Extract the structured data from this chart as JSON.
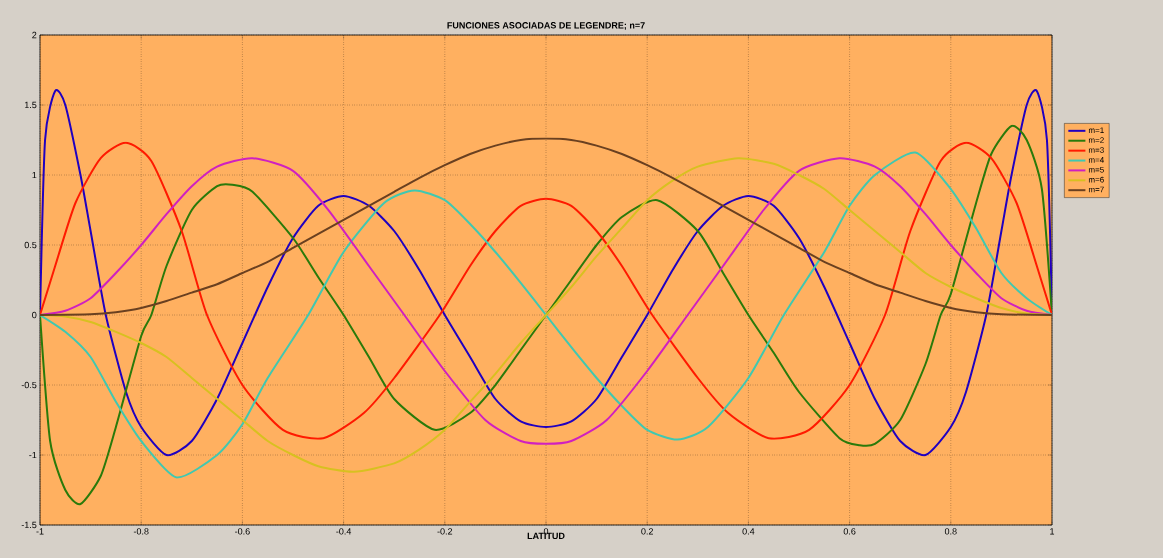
{
  "chart_data": {
    "type": "line",
    "title": "FUNCIONES ASOCIADAS DE LEGENDRE; n=7",
    "xlabel": "LATITUD",
    "xlim": [
      -1,
      1
    ],
    "ylim": [
      -1.5,
      2
    ],
    "xticks": [
      -1,
      -0.8,
      -0.6,
      -0.4,
      -0.2,
      0,
      0.2,
      0.4,
      0.6,
      0.8,
      1
    ],
    "yticks": [
      -1.5,
      -1,
      -0.5,
      0,
      0.5,
      1,
      1.5,
      2
    ],
    "grid": true,
    "legend": "right",
    "line_style": "solid",
    "series": [
      {
        "name": "m=1",
        "color": "#2000c0",
        "x": [
          -1,
          -0.99,
          -0.97,
          -0.95,
          -0.92,
          -0.9,
          -0.87,
          -0.83,
          -0.8,
          -0.75,
          -0.7,
          -0.65,
          -0.6,
          -0.55,
          -0.5,
          -0.45,
          -0.4,
          -0.35,
          -0.3,
          -0.25,
          -0.2,
          -0.15,
          -0.1,
          -0.05,
          0,
          0.05,
          0.1,
          0.15,
          0.2,
          0.25,
          0.3,
          0.35,
          0.4,
          0.45,
          0.5,
          0.55,
          0.6,
          0.65,
          0.7,
          0.75,
          0.8,
          0.83,
          0.87,
          0.9,
          0.92,
          0.95,
          0.97,
          0.99,
          1
        ],
        "values": [
          0,
          1.25,
          1.6,
          1.5,
          1.0,
          0.6,
          0,
          -0.55,
          -0.8,
          -1.0,
          -0.9,
          -0.6,
          -0.2,
          0.2,
          0.55,
          0.78,
          0.85,
          0.78,
          0.6,
          0.32,
          0,
          -0.3,
          -0.6,
          -0.76,
          -0.8,
          -0.76,
          -0.6,
          -0.3,
          0,
          0.32,
          0.6,
          0.78,
          0.85,
          0.78,
          0.55,
          0.2,
          -0.2,
          -0.6,
          -0.9,
          -1.0,
          -0.8,
          -0.55,
          0,
          0.6,
          1.0,
          1.5,
          1.6,
          1.25,
          0
        ]
      },
      {
        "name": "m=2",
        "color": "#2a7a0a",
        "x": [
          -1,
          -0.98,
          -0.95,
          -0.92,
          -0.88,
          -0.85,
          -0.8,
          -0.78,
          -0.75,
          -0.7,
          -0.65,
          -0.62,
          -0.58,
          -0.5,
          -0.45,
          -0.4,
          -0.35,
          -0.3,
          -0.22,
          -0.15,
          -0.1,
          -0.05,
          0,
          0.05,
          0.1,
          0.15,
          0.22,
          0.3,
          0.35,
          0.4,
          0.45,
          0.5,
          0.58,
          0.62,
          0.65,
          0.7,
          0.75,
          0.78,
          0.8,
          0.85,
          0.88,
          0.92,
          0.95,
          0.98,
          1
        ],
        "values": [
          0,
          -0.9,
          -1.25,
          -1.35,
          -1.15,
          -0.8,
          -0.15,
          0,
          0.35,
          0.75,
          0.92,
          0.93,
          0.88,
          0.55,
          0.27,
          0,
          -0.3,
          -0.6,
          -0.82,
          -0.7,
          -0.5,
          -0.25,
          0,
          0.25,
          0.5,
          0.7,
          0.82,
          0.6,
          0.3,
          0,
          -0.27,
          -0.55,
          -0.88,
          -0.93,
          -0.92,
          -0.75,
          -0.35,
          0,
          0.15,
          0.8,
          1.15,
          1.35,
          1.25,
          0.9,
          0
        ]
      },
      {
        "name": "m=3",
        "color": "#ff1a00",
        "x": [
          -1,
          -0.97,
          -0.93,
          -0.88,
          -0.83,
          -0.78,
          -0.72,
          -0.67,
          -0.6,
          -0.52,
          -0.44,
          -0.36,
          -0.3,
          -0.21,
          -0.15,
          -0.1,
          -0.05,
          0,
          0.05,
          0.1,
          0.15,
          0.21,
          0.3,
          0.36,
          0.44,
          0.52,
          0.6,
          0.67,
          0.72,
          0.78,
          0.83,
          0.88,
          0.93,
          0.97,
          1
        ],
        "values": [
          0,
          0.35,
          0.8,
          1.12,
          1.23,
          1.1,
          0.6,
          0,
          -0.5,
          -0.82,
          -0.88,
          -0.7,
          -0.45,
          0,
          0.35,
          0.6,
          0.78,
          0.83,
          0.78,
          0.6,
          0.35,
          0,
          -0.45,
          -0.7,
          -0.88,
          -0.82,
          -0.5,
          0,
          0.6,
          1.1,
          1.23,
          1.12,
          0.8,
          0.35,
          0
        ]
      },
      {
        "name": "m=4",
        "color": "#40c8b0",
        "x": [
          -1,
          -0.95,
          -0.9,
          -0.85,
          -0.8,
          -0.73,
          -0.65,
          -0.6,
          -0.55,
          -0.47,
          -0.4,
          -0.32,
          -0.26,
          -0.2,
          -0.15,
          -0.1,
          -0.05,
          0,
          0.05,
          0.1,
          0.15,
          0.2,
          0.26,
          0.32,
          0.4,
          0.47,
          0.55,
          0.6,
          0.65,
          0.73,
          0.8,
          0.85,
          0.9,
          0.95,
          1
        ],
        "values": [
          0,
          -0.12,
          -0.3,
          -0.62,
          -0.9,
          -1.16,
          -1.0,
          -0.78,
          -0.45,
          0,
          0.45,
          0.8,
          0.89,
          0.82,
          0.65,
          0.45,
          0.23,
          0,
          -0.23,
          -0.45,
          -0.65,
          -0.82,
          -0.89,
          -0.8,
          -0.45,
          0,
          0.45,
          0.78,
          1.0,
          1.16,
          0.9,
          0.62,
          0.3,
          0.12,
          0
        ]
      },
      {
        "name": "m=5",
        "color": "#d020c0",
        "x": [
          -1,
          -0.95,
          -0.9,
          -0.85,
          -0.8,
          -0.75,
          -0.7,
          -0.65,
          -0.58,
          -0.5,
          -0.43,
          -0.35,
          -0.28,
          -0.2,
          -0.12,
          -0.05,
          0,
          0.05,
          0.12,
          0.2,
          0.28,
          0.35,
          0.43,
          0.5,
          0.58,
          0.65,
          0.7,
          0.75,
          0.8,
          0.85,
          0.9,
          0.95,
          1
        ],
        "values": [
          0,
          0.03,
          0.12,
          0.3,
          0.5,
          0.72,
          0.92,
          1.06,
          1.12,
          1.03,
          0.75,
          0.35,
          0,
          -0.4,
          -0.75,
          -0.9,
          -0.92,
          -0.9,
          -0.75,
          -0.4,
          0,
          0.35,
          0.75,
          1.03,
          1.12,
          1.06,
          0.92,
          0.72,
          0.5,
          0.3,
          0.12,
          0.03,
          0
        ]
      },
      {
        "name": "m=6",
        "color": "#d8c020",
        "x": [
          -1,
          -0.95,
          -0.9,
          -0.85,
          -0.8,
          -0.75,
          -0.7,
          -0.65,
          -0.6,
          -0.55,
          -0.5,
          -0.45,
          -0.38,
          -0.3,
          -0.25,
          -0.2,
          -0.15,
          -0.1,
          -0.05,
          0,
          0.05,
          0.1,
          0.15,
          0.2,
          0.25,
          0.3,
          0.38,
          0.45,
          0.5,
          0.55,
          0.6,
          0.65,
          0.7,
          0.75,
          0.8,
          0.85,
          0.9,
          0.95,
          1
        ],
        "values": [
          0,
          -0.01,
          -0.05,
          -0.12,
          -0.2,
          -0.3,
          -0.45,
          -0.6,
          -0.75,
          -0.9,
          -1.0,
          -1.08,
          -1.12,
          -1.06,
          -0.96,
          -0.82,
          -0.62,
          -0.42,
          -0.2,
          0,
          0.2,
          0.42,
          0.62,
          0.82,
          0.96,
          1.06,
          1.12,
          1.08,
          1.0,
          0.9,
          0.75,
          0.6,
          0.45,
          0.3,
          0.2,
          0.12,
          0.05,
          0.01,
          0
        ]
      },
      {
        "name": "m=7",
        "color": "#6a4020",
        "x": [
          -1,
          -0.9,
          -0.85,
          -0.8,
          -0.75,
          -0.7,
          -0.65,
          -0.6,
          -0.55,
          -0.5,
          -0.45,
          -0.4,
          -0.35,
          -0.3,
          -0.25,
          -0.2,
          -0.15,
          -0.1,
          -0.05,
          0,
          0.05,
          0.1,
          0.15,
          0.2,
          0.25,
          0.3,
          0.35,
          0.4,
          0.45,
          0.5,
          0.55,
          0.6,
          0.65,
          0.7,
          0.75,
          0.8,
          0.85,
          0.9,
          1
        ],
        "values": [
          0,
          0.005,
          0.02,
          0.05,
          0.1,
          0.16,
          0.22,
          0.3,
          0.38,
          0.48,
          0.58,
          0.68,
          0.78,
          0.88,
          0.98,
          1.07,
          1.15,
          1.21,
          1.25,
          1.26,
          1.25,
          1.21,
          1.15,
          1.07,
          0.98,
          0.88,
          0.78,
          0.68,
          0.58,
          0.48,
          0.38,
          0.3,
          0.22,
          0.16,
          0.1,
          0.05,
          0.02,
          0.005,
          0
        ]
      }
    ]
  }
}
